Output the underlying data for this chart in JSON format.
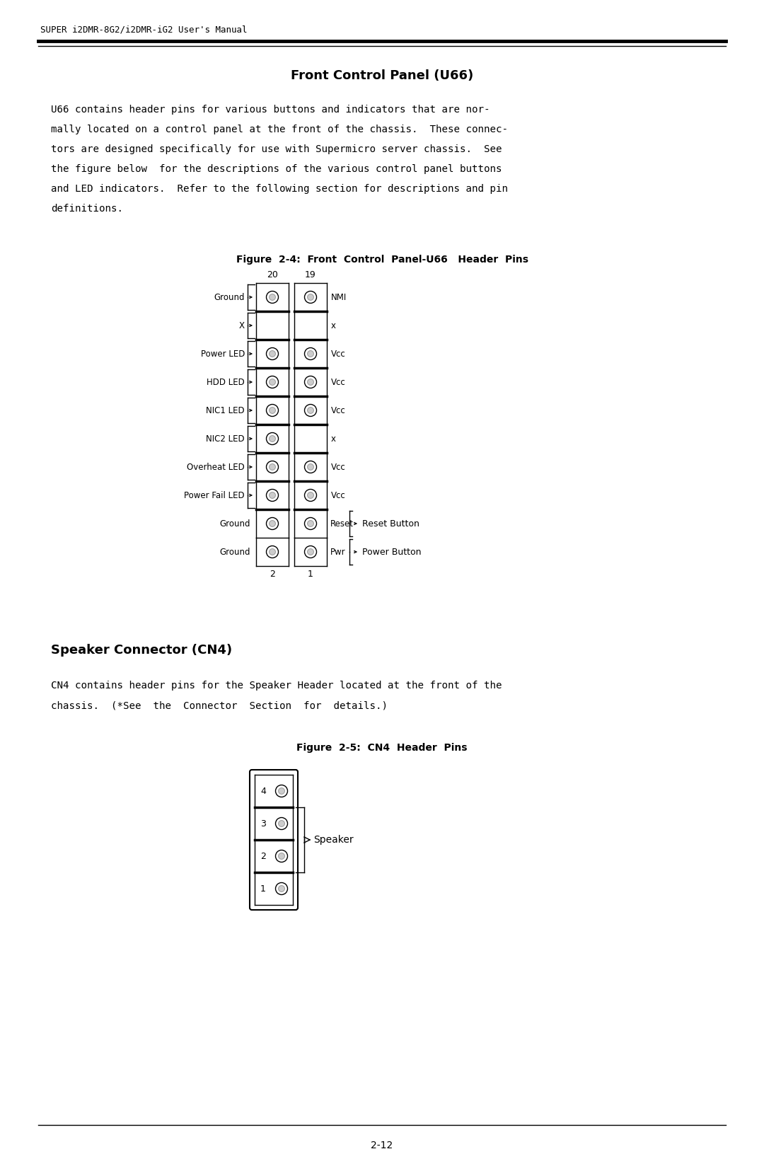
{
  "page_title": "SUPER i2DMR-8G2/i2DMR-iG2 User's Manual",
  "section1_title": "Front Control Panel (U66)",
  "section1_body_lines": [
    "U66 contains header pins for various buttons and indicators that are nor-",
    "mally located on a control panel at the front of the chassis.  These connec-",
    "tors are designed specifically for use with Supermicro server chassis.  See",
    "the figure below  for the descriptions of the various control panel buttons",
    "and LED indicators.  Refer to the following section for descriptions and pin",
    "definitions."
  ],
  "fig1_title": "Figure  2-4:  Front  Control  Panel-U66   Header  Pins",
  "fig2_title": "Figure  2-5:  CN4  Header  Pins",
  "section2_title": "Speaker Connector (CN4)",
  "section2_body_lines": [
    "CN4 contains header pins for the Speaker Header located at the front of the",
    "chassis.  (*See  the  Connector  Section  for  details.)"
  ],
  "page_number": "2-12",
  "u66_rows": [
    {
      "left_label": "Ground",
      "right_label": "NMI",
      "has_left_pin": true,
      "has_right_pin": true,
      "brace_left": true,
      "brace_right": false,
      "thick_top": false,
      "right_button": ""
    },
    {
      "left_label": "X",
      "right_label": "x",
      "has_left_pin": false,
      "has_right_pin": false,
      "brace_left": true,
      "brace_right": false,
      "thick_top": true,
      "right_button": ""
    },
    {
      "left_label": "Power LED",
      "right_label": "Vcc",
      "has_left_pin": true,
      "has_right_pin": true,
      "brace_left": true,
      "brace_right": false,
      "thick_top": true,
      "right_button": ""
    },
    {
      "left_label": "HDD LED",
      "right_label": "Vcc",
      "has_left_pin": true,
      "has_right_pin": true,
      "brace_left": true,
      "brace_right": false,
      "thick_top": true,
      "right_button": ""
    },
    {
      "left_label": "NIC1 LED",
      "right_label": "Vcc",
      "has_left_pin": true,
      "has_right_pin": true,
      "brace_left": true,
      "brace_right": false,
      "thick_top": true,
      "right_button": ""
    },
    {
      "left_label": "NIC2 LED",
      "right_label": "x",
      "has_left_pin": true,
      "has_right_pin": false,
      "brace_left": true,
      "brace_right": false,
      "thick_top": true,
      "right_button": ""
    },
    {
      "left_label": "Overheat LED",
      "right_label": "Vcc",
      "has_left_pin": true,
      "has_right_pin": true,
      "brace_left": true,
      "brace_right": false,
      "thick_top": true,
      "right_button": ""
    },
    {
      "left_label": "Power Fail LED",
      "right_label": "Vcc",
      "has_left_pin": true,
      "has_right_pin": true,
      "brace_left": true,
      "brace_right": false,
      "thick_top": true,
      "right_button": ""
    },
    {
      "left_label": "Ground",
      "right_label": "Reset",
      "has_left_pin": true,
      "has_right_pin": true,
      "brace_left": false,
      "brace_right": true,
      "thick_top": true,
      "right_button": "Reset Button"
    },
    {
      "left_label": "Ground",
      "right_label": "Pwr",
      "has_left_pin": true,
      "has_right_pin": true,
      "brace_left": false,
      "brace_right": true,
      "thick_top": false,
      "right_button": "Power Button"
    }
  ],
  "col_labels_top": [
    "20",
    "19"
  ],
  "col_labels_bottom": [
    "2",
    "1"
  ],
  "background_color": "#ffffff",
  "text_color": "#000000"
}
